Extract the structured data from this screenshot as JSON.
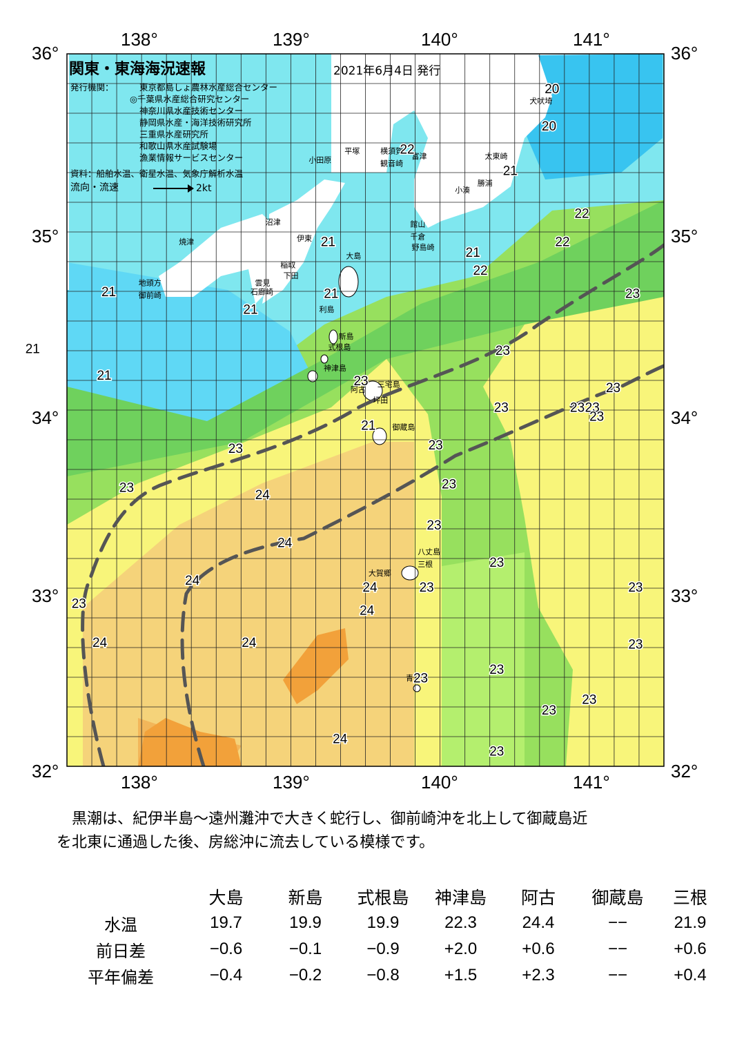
{
  "map": {
    "title": "関東・東海海況速報",
    "issue_date": "2021年6月4日 発行",
    "publishers_label": "発行機関：",
    "publishers": [
      "東京都島しょ農林水産総合センター",
      "◎千葉県水産総合研究センター",
      "神奈川県水産技術センター",
      "静岡県水産・海洋技術研究所",
      "三重県水産研究所",
      "和歌山県水産試験場",
      "漁業情報サービスセンター"
    ],
    "sources": "資料：船舶水温、衛星水温、気象庁解析水温",
    "legend_label": "流向・流速",
    "legend_scale": "2kt",
    "lon_labels": [
      "138°",
      "139°",
      "140°",
      "141°"
    ],
    "lat_labels": [
      "36°",
      "35°",
      "34°",
      "33°",
      "32°"
    ],
    "temp_labels": [
      {
        "t": "20",
        "lon": 140.75,
        "lat": 35.78
      },
      {
        "t": "20",
        "lon": 140.73,
        "lat": 35.57
      },
      {
        "t": "22",
        "lon": 139.78,
        "lat": 35.44
      },
      {
        "t": "21",
        "lon": 140.47,
        "lat": 35.32
      },
      {
        "t": "22",
        "lon": 140.95,
        "lat": 35.08
      },
      {
        "t": "22",
        "lon": 140.82,
        "lat": 34.92
      },
      {
        "t": "21",
        "lon": 139.25,
        "lat": 34.92
      },
      {
        "t": "21",
        "lon": 140.22,
        "lat": 34.86
      },
      {
        "t": "22",
        "lon": 140.27,
        "lat": 34.76
      },
      {
        "t": "21",
        "lon": 137.78,
        "lat": 34.64
      },
      {
        "t": "21",
        "lon": 138.73,
        "lat": 34.54
      },
      {
        "t": "21",
        "lon": 139.27,
        "lat": 34.63
      },
      {
        "t": "23",
        "lon": 141.29,
        "lat": 34.63
      },
      {
        "t": "21",
        "lon": 137.27,
        "lat": 34.32
      },
      {
        "t": "21",
        "lon": 137.75,
        "lat": 34.17
      },
      {
        "t": "23",
        "lon": 140.42,
        "lat": 34.31
      },
      {
        "t": "23",
        "lon": 139.47,
        "lat": 34.14
      },
      {
        "t": "23",
        "lon": 141.16,
        "lat": 34.1
      },
      {
        "t": "23",
        "lon": 140.41,
        "lat": 33.99
      },
      {
        "t": "23",
        "lon": 140.92,
        "lat": 33.99
      },
      {
        "t": "23",
        "lon": 141.02,
        "lat": 33.99
      },
      {
        "t": "23",
        "lon": 141.05,
        "lat": 33.94
      },
      {
        "t": "21",
        "lon": 139.52,
        "lat": 33.89
      },
      {
        "t": "23",
        "lon": 138.63,
        "lat": 33.76
      },
      {
        "t": "23",
        "lon": 139.97,
        "lat": 33.78
      },
      {
        "t": "23",
        "lon": 137.9,
        "lat": 33.54
      },
      {
        "t": "23",
        "lon": 140.06,
        "lat": 33.56
      },
      {
        "t": "24",
        "lon": 138.81,
        "lat": 33.5
      },
      {
        "t": "23",
        "lon": 139.96,
        "lat": 33.33
      },
      {
        "t": "24",
        "lon": 138.96,
        "lat": 33.23
      },
      {
        "t": "23",
        "lon": 140.38,
        "lat": 33.12
      },
      {
        "t": "24",
        "lon": 138.34,
        "lat": 33.02
      },
      {
        "t": "24",
        "lon": 139.53,
        "lat": 32.98
      },
      {
        "t": "23",
        "lon": 139.91,
        "lat": 32.98
      },
      {
        "t": "23",
        "lon": 141.31,
        "lat": 32.98
      },
      {
        "t": "23",
        "lon": 137.58,
        "lat": 32.89
      },
      {
        "t": "24",
        "lon": 139.51,
        "lat": 32.85
      },
      {
        "t": "24",
        "lon": 137.72,
        "lat": 32.67
      },
      {
        "t": "24",
        "lon": 138.72,
        "lat": 32.67
      },
      {
        "t": "23",
        "lon": 141.31,
        "lat": 32.66
      },
      {
        "t": "23",
        "lon": 140.38,
        "lat": 32.52
      },
      {
        "t": "23",
        "lon": 139.87,
        "lat": 32.47
      },
      {
        "t": "23",
        "lon": 141.0,
        "lat": 32.35
      },
      {
        "t": "23",
        "lon": 140.73,
        "lat": 32.29
      },
      {
        "t": "24",
        "lon": 139.33,
        "lat": 32.13
      },
      {
        "t": "23",
        "lon": 140.38,
        "lat": 32.06
      }
    ],
    "place_labels": [
      {
        "t": "犬吠埼",
        "lon": 140.6,
        "lat": 35.72
      },
      {
        "t": "太東崎",
        "lon": 140.3,
        "lat": 35.41
      },
      {
        "t": "勝浦",
        "lon": 140.25,
        "lat": 35.26
      },
      {
        "t": "小湊",
        "lon": 140.1,
        "lat": 35.22
      },
      {
        "t": "富津",
        "lon": 139.81,
        "lat": 35.41
      },
      {
        "t": "観音崎",
        "lon": 139.6,
        "lat": 35.37
      },
      {
        "t": "横須賀",
        "lon": 139.6,
        "lat": 35.44
      },
      {
        "t": "平塚",
        "lon": 139.36,
        "lat": 35.44
      },
      {
        "t": "小田原",
        "lon": 139.12,
        "lat": 35.39
      },
      {
        "t": "館山",
        "lon": 139.8,
        "lat": 35.03
      },
      {
        "t": "千倉",
        "lon": 139.8,
        "lat": 34.96
      },
      {
        "t": "野島崎",
        "lon": 139.81,
        "lat": 34.9
      },
      {
        "t": "伊東",
        "lon": 139.04,
        "lat": 34.95
      },
      {
        "t": "沼津",
        "lon": 138.83,
        "lat": 35.04
      },
      {
        "t": "焼津",
        "lon": 138.25,
        "lat": 34.93
      },
      {
        "t": "大島",
        "lon": 139.37,
        "lat": 34.85
      },
      {
        "t": "稲取",
        "lon": 138.93,
        "lat": 34.8
      },
      {
        "t": "下田",
        "lon": 138.95,
        "lat": 34.74
      },
      {
        "t": "雲見",
        "lon": 138.76,
        "lat": 34.7
      },
      {
        "t": "石廊崎",
        "lon": 138.73,
        "lat": 34.65
      },
      {
        "t": "地頭方",
        "lon": 137.98,
        "lat": 34.7
      },
      {
        "t": "御前崎",
        "lon": 137.98,
        "lat": 34.63
      },
      {
        "t": "利島",
        "lon": 139.19,
        "lat": 34.55
      },
      {
        "t": "新島",
        "lon": 139.32,
        "lat": 34.4
      },
      {
        "t": "式根島",
        "lon": 139.25,
        "lat": 34.34
      },
      {
        "t": "神津島",
        "lon": 139.22,
        "lat": 34.22
      },
      {
        "t": "三宅島",
        "lon": 139.58,
        "lat": 34.13
      },
      {
        "t": "阿古",
        "lon": 139.4,
        "lat": 34.1
      },
      {
        "t": "坪田",
        "lon": 139.55,
        "lat": 34.04
      },
      {
        "t": "御蔵島",
        "lon": 139.68,
        "lat": 33.89
      },
      {
        "t": "八丈島",
        "lon": 139.85,
        "lat": 33.19
      },
      {
        "t": "三根",
        "lon": 139.85,
        "lat": 33.12
      },
      {
        "t": "大賀郷",
        "lon": 139.52,
        "lat": 33.07
      },
      {
        "t": "青ヶ島",
        "lon": 139.77,
        "lat": 32.48
      }
    ],
    "legend_colors": {
      "t19_20": "#38c4f0",
      "t20": "#5fd8f5",
      "t21": "#7fe7ef",
      "t22": "#6fd15d",
      "t22b": "#97e05e",
      "t23": "#b4ef6e",
      "t23b": "#f8f57a",
      "t24": "#f5d37a",
      "t24b": "#f2b65a",
      "t25": "#f2a13a",
      "land": "#ffffff",
      "kuroshio_path": "#555555"
    }
  },
  "description": [
    "　黒潮は、紀伊半島～遠州灘沖で大きく蛇行し、御前崎沖を北上して御蔵島近",
    "を北東に通過した後、房総沖に流去している模様です。"
  ],
  "stats": {
    "stations": [
      "大島",
      "新島",
      "式根島",
      "神津島",
      "阿古",
      "御蔵島",
      "三根"
    ],
    "rows": [
      {
        "label": "水温",
        "values": [
          "19.7",
          "19.9",
          "19.9",
          "22.3",
          "24.4",
          "−−",
          "21.9"
        ]
      },
      {
        "label": "前日差",
        "values": [
          "−0.6",
          "−0.1",
          "−0.9",
          "+2.0",
          "+0.6",
          "−−",
          "+0.6"
        ]
      },
      {
        "label": "平年偏差",
        "values": [
          "−0.4",
          "−0.2",
          "−0.8",
          "+1.5",
          "+2.3",
          "−−",
          "+0.4"
        ]
      }
    ]
  }
}
